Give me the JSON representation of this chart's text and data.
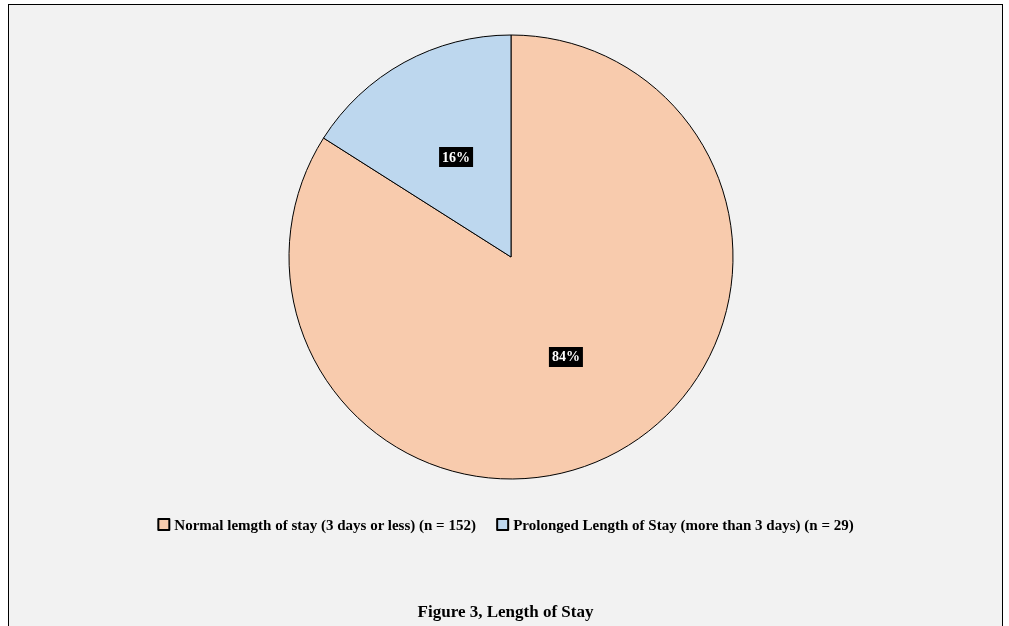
{
  "chart_data": {
    "type": "pie",
    "title": "Figure 3, Length of Stay",
    "categories": [
      "Normal lemgth of stay (3 days or less) (n = 152)",
      "Prolonged Length of Stay (more than 3 days) (n = 29)"
    ],
    "values": [
      84,
      16
    ],
    "colors": [
      "#f8cbad",
      "#bdd7ee"
    ],
    "value_labels": [
      "84%",
      "16%"
    ],
    "legend": "bottom"
  }
}
